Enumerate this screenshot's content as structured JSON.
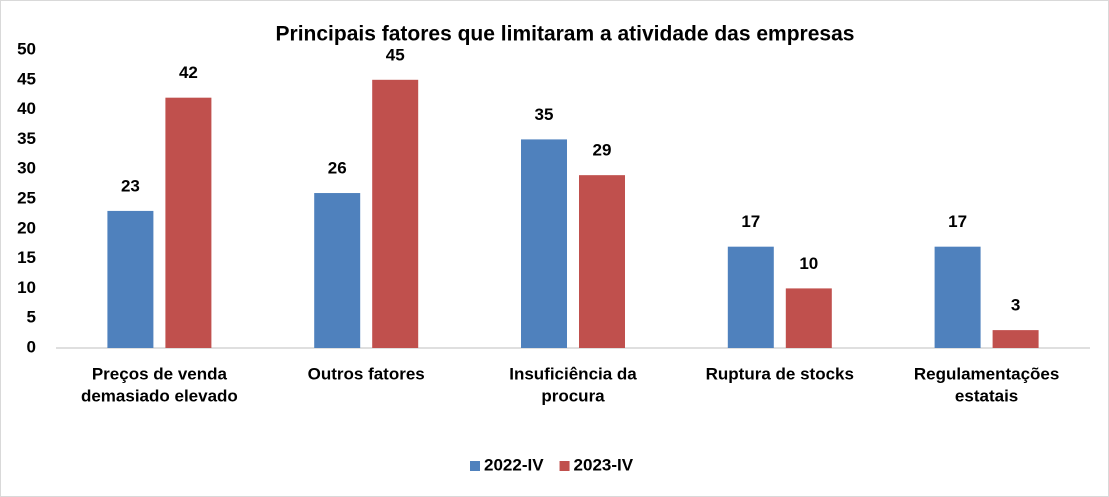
{
  "chart_data": {
    "type": "bar",
    "title": "Principais fatores que limitaram a atividade das empresas",
    "categories": [
      [
        "Preços de venda",
        "demasiado elevado"
      ],
      [
        "Outros fatores"
      ],
      [
        "Insuficiência da",
        "procura"
      ],
      [
        "Ruptura de stocks"
      ],
      [
        "Regulamentações",
        "estatais"
      ]
    ],
    "series": [
      {
        "name": "2022-IV",
        "color": "#4f81bd",
        "values": [
          23,
          26,
          35,
          17,
          17
        ]
      },
      {
        "name": "2023-IV",
        "color": "#c0504d",
        "values": [
          42,
          45,
          29,
          10,
          3
        ]
      }
    ],
    "ylim": [
      0,
      50
    ],
    "yticks": [
      0,
      5,
      10,
      15,
      20,
      25,
      30,
      35,
      40,
      45,
      50
    ],
    "grid": false,
    "legend": "bottom"
  }
}
